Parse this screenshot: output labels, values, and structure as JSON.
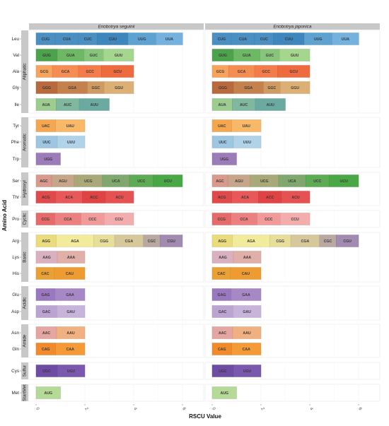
{
  "chart_data": {
    "type": "bar",
    "orientation": "horizontal-stacked",
    "xlabel": "RSCU Value",
    "ylabel": "Amino Acid",
    "xlim": [
      0,
      6.9
    ],
    "xticks": [
      0,
      2,
      4,
      6
    ],
    "grid": true,
    "panels": [
      {
        "name": "Eriobotrya seguinii",
        "amino_acids": [
          {
            "aa": "Leu",
            "codons": [
              {
                "codon": "CUG",
                "value": 0.78
              },
              {
                "codon": "CUA",
                "value": 0.96
              },
              {
                "codon": "CUC",
                "value": 0.77
              },
              {
                "codon": "CUU",
                "value": 1.26
              },
              {
                "codon": "UUG",
                "value": 1.14
              },
              {
                "codon": "UUA",
                "value": 1.1
              }
            ]
          },
          {
            "aa": "Val",
            "codons": [
              {
                "codon": "GUG",
                "value": 0.87
              },
              {
                "codon": "GUA",
                "value": 1.09
              },
              {
                "codon": "GUC",
                "value": 0.8
              },
              {
                "codon": "GUU",
                "value": 1.24
              }
            ]
          },
          {
            "aa": "Ala",
            "codons": [
              {
                "codon": "GCG",
                "value": 0.67
              },
              {
                "codon": "GCA",
                "value": 1.07
              },
              {
                "codon": "GCC",
                "value": 0.94
              },
              {
                "codon": "GCU",
                "value": 1.32
              }
            ]
          },
          {
            "aa": "Gly",
            "codons": [
              {
                "codon": "GGG",
                "value": 0.87
              },
              {
                "codon": "GGA",
                "value": 1.23
              },
              {
                "codon": "GGC",
                "value": 0.69
              },
              {
                "codon": "GGU",
                "value": 1.21
              }
            ]
          },
          {
            "aa": "Ile",
            "codons": [
              {
                "codon": "AUA",
                "value": 0.82
              },
              {
                "codon": "AUC",
                "value": 0.95
              },
              {
                "codon": "AUU",
                "value": 1.23
              }
            ]
          },
          {
            "aa": "Tyr",
            "codons": [
              {
                "codon": "UAC",
                "value": 0.8
              },
              {
                "codon": "UAU",
                "value": 1.2
              }
            ]
          },
          {
            "aa": "Phe",
            "codons": [
              {
                "codon": "UUC",
                "value": 0.87
              },
              {
                "codon": "UUU",
                "value": 1.13
              }
            ]
          },
          {
            "aa": "Trp",
            "codons": [
              {
                "codon": "UGG",
                "value": 1.0
              }
            ]
          },
          {
            "aa": "Ser",
            "codons": [
              {
                "codon": "AGC",
                "value": 0.64
              },
              {
                "codon": "AGU",
                "value": 0.92
              },
              {
                "codon": "UCG",
                "value": 1.16
              },
              {
                "codon": "UCA",
                "value": 1.11
              },
              {
                "codon": "UCC",
                "value": 0.97
              },
              {
                "codon": "UCU",
                "value": 1.2
              }
            ]
          },
          {
            "aa": "Thr",
            "codons": [
              {
                "codon": "ACG",
                "value": 0.8
              },
              {
                "codon": "ACA",
                "value": 1.1
              },
              {
                "codon": "ACC",
                "value": 0.94
              },
              {
                "codon": "ACU",
                "value": 1.16
              }
            ]
          },
          {
            "aa": "Pro",
            "codons": [
              {
                "codon": "CCG",
                "value": 0.77
              },
              {
                "codon": "CCA",
                "value": 1.07
              },
              {
                "codon": "CCC",
                "value": 0.95
              },
              {
                "codon": "CCU",
                "value": 1.21
              }
            ]
          },
          {
            "aa": "Arg",
            "codons": [
              {
                "codon": "AGG",
                "value": 0.83
              },
              {
                "codon": "AGA",
                "value": 1.53
              },
              {
                "codon": "CGG",
                "value": 0.86
              },
              {
                "codon": "CGA",
                "value": 1.18
              },
              {
                "codon": "CGC",
                "value": 0.68
              },
              {
                "codon": "CGU",
                "value": 0.92
              }
            ]
          },
          {
            "aa": "Lys",
            "codons": [
              {
                "codon": "AAG",
                "value": 0.87
              },
              {
                "codon": "AAA",
                "value": 1.13
              }
            ]
          },
          {
            "aa": "His",
            "codons": [
              {
                "codon": "CAC",
                "value": 0.75
              },
              {
                "codon": "CAU",
                "value": 1.25
              }
            ]
          },
          {
            "aa": "Glu",
            "codons": [
              {
                "codon": "GAG",
                "value": 0.78
              },
              {
                "codon": "GAA",
                "value": 1.22
              }
            ]
          },
          {
            "aa": "Asp",
            "codons": [
              {
                "codon": "GAC",
                "value": 0.85
              },
              {
                "codon": "GAU",
                "value": 1.15
              }
            ]
          },
          {
            "aa": "Asn",
            "codons": [
              {
                "codon": "AAC",
                "value": 0.84
              },
              {
                "codon": "AAU",
                "value": 1.16
              }
            ]
          },
          {
            "aa": "Gln",
            "codons": [
              {
                "codon": "CAG",
                "value": 0.8
              },
              {
                "codon": "CAA",
                "value": 1.2
              }
            ]
          },
          {
            "aa": "Cys",
            "codons": [
              {
                "codon": "UGC",
                "value": 0.87
              },
              {
                "codon": "UGU",
                "value": 1.13
              }
            ]
          },
          {
            "aa": "Met",
            "codons": [
              {
                "codon": "AUG",
                "value": 1.0
              }
            ]
          }
        ]
      },
      {
        "name": "Eriobotrya japonica",
        "amino_acids": [
          {
            "aa": "Leu",
            "codons": [
              {
                "codon": "CUG",
                "value": 0.78
              },
              {
                "codon": "CUA",
                "value": 0.96
              },
              {
                "codon": "CUC",
                "value": 0.77
              },
              {
                "codon": "CUU",
                "value": 1.26
              },
              {
                "codon": "UUG",
                "value": 1.14
              },
              {
                "codon": "UUA",
                "value": 1.1
              }
            ]
          },
          {
            "aa": "Val",
            "codons": [
              {
                "codon": "GUG",
                "value": 0.87
              },
              {
                "codon": "GUA",
                "value": 1.09
              },
              {
                "codon": "GUC",
                "value": 0.8
              },
              {
                "codon": "GUU",
                "value": 1.24
              }
            ]
          },
          {
            "aa": "Ala",
            "codons": [
              {
                "codon": "GCG",
                "value": 0.67
              },
              {
                "codon": "GCA",
                "value": 1.07
              },
              {
                "codon": "GCC",
                "value": 0.94
              },
              {
                "codon": "GCU",
                "value": 1.32
              }
            ]
          },
          {
            "aa": "Gly",
            "codons": [
              {
                "codon": "GGG",
                "value": 0.87
              },
              {
                "codon": "GGA",
                "value": 1.23
              },
              {
                "codon": "GGC",
                "value": 0.69
              },
              {
                "codon": "GGU",
                "value": 1.21
              }
            ]
          },
          {
            "aa": "Ile",
            "codons": [
              {
                "codon": "AUA",
                "value": 0.82
              },
              {
                "codon": "AUC",
                "value": 0.95
              },
              {
                "codon": "AUU",
                "value": 1.23
              }
            ]
          },
          {
            "aa": "Tyr",
            "codons": [
              {
                "codon": "UAC",
                "value": 0.8
              },
              {
                "codon": "UAU",
                "value": 1.2
              }
            ]
          },
          {
            "aa": "Phe",
            "codons": [
              {
                "codon": "UUC",
                "value": 0.87
              },
              {
                "codon": "UUU",
                "value": 1.13
              }
            ]
          },
          {
            "aa": "Trp",
            "codons": [
              {
                "codon": "UGG",
                "value": 1.0
              }
            ]
          },
          {
            "aa": "Ser",
            "codons": [
              {
                "codon": "AGC",
                "value": 0.64
              },
              {
                "codon": "AGU",
                "value": 0.92
              },
              {
                "codon": "UCG",
                "value": 1.16
              },
              {
                "codon": "UCA",
                "value": 1.11
              },
              {
                "codon": "UCC",
                "value": 0.97
              },
              {
                "codon": "UCU",
                "value": 1.2
              }
            ]
          },
          {
            "aa": "Thr",
            "codons": [
              {
                "codon": "ACG",
                "value": 0.8
              },
              {
                "codon": "ACA",
                "value": 1.1
              },
              {
                "codon": "ACC",
                "value": 0.94
              },
              {
                "codon": "ACU",
                "value": 1.16
              }
            ]
          },
          {
            "aa": "Pro",
            "codons": [
              {
                "codon": "CCG",
                "value": 0.77
              },
              {
                "codon": "CCA",
                "value": 1.07
              },
              {
                "codon": "CCC",
                "value": 0.95
              },
              {
                "codon": "CCU",
                "value": 1.21
              }
            ]
          },
          {
            "aa": "Arg",
            "codons": [
              {
                "codon": "AGG",
                "value": 0.83
              },
              {
                "codon": "AGA",
                "value": 1.53
              },
              {
                "codon": "CGG",
                "value": 0.86
              },
              {
                "codon": "CGA",
                "value": 1.18
              },
              {
                "codon": "CGC",
                "value": 0.68
              },
              {
                "codon": "CGU",
                "value": 0.92
              }
            ]
          },
          {
            "aa": "Lys",
            "codons": [
              {
                "codon": "AAG",
                "value": 0.87
              },
              {
                "codon": "AAA",
                "value": 1.13
              }
            ]
          },
          {
            "aa": "His",
            "codons": [
              {
                "codon": "CAC",
                "value": 0.75
              },
              {
                "codon": "CAU",
                "value": 1.25
              }
            ]
          },
          {
            "aa": "Glu",
            "codons": [
              {
                "codon": "GAG",
                "value": 0.78
              },
              {
                "codon": "GAA",
                "value": 1.22
              }
            ]
          },
          {
            "aa": "Asp",
            "codons": [
              {
                "codon": "GAC",
                "value": 0.85
              },
              {
                "codon": "GAU",
                "value": 1.15
              }
            ]
          },
          {
            "aa": "Asn",
            "codons": [
              {
                "codon": "AAC",
                "value": 0.84
              },
              {
                "codon": "AAU",
                "value": 1.16
              }
            ]
          },
          {
            "aa": "Gln",
            "codons": [
              {
                "codon": "CAG",
                "value": 0.8
              },
              {
                "codon": "CAA",
                "value": 1.2
              }
            ]
          },
          {
            "aa": "Cys",
            "codons": [
              {
                "codon": "UGC",
                "value": 0.87
              },
              {
                "codon": "UGU",
                "value": 1.13
              }
            ]
          },
          {
            "aa": "Met",
            "codons": [
              {
                "codon": "AUG",
                "value": 1.0
              }
            ]
          }
        ]
      }
    ],
    "groups": [
      {
        "name": "Aliphatic",
        "members": [
          "Leu",
          "Val",
          "Ala",
          "Gly",
          "Ile"
        ]
      },
      {
        "name": "Aromatic",
        "members": [
          "Tyr",
          "Phe",
          "Trp"
        ]
      },
      {
        "name": "Hydroxyl",
        "members": [
          "Ser",
          "Thr"
        ]
      },
      {
        "name": "Cyclic",
        "members": [
          "Pro"
        ]
      },
      {
        "name": "Basic",
        "members": [
          "Arg",
          "Lys",
          "His"
        ]
      },
      {
        "name": "Acidic",
        "members": [
          "Glu",
          "Asp"
        ]
      },
      {
        "name": "Amide",
        "members": [
          "Asn",
          "Gln"
        ]
      },
      {
        "name": "Sulfur",
        "members": [
          "Cys"
        ]
      },
      {
        "name": "StartMet",
        "members": [
          "Met"
        ]
      }
    ],
    "colors": {
      "CUG": "#4a8fc2",
      "CUA": "#4a8fc2",
      "CUC": "#4a8fc2",
      "CUU": "#3f86bd",
      "UUG": "#5ea2d2",
      "UUA": "#74b1de",
      "GUG": "#4ca34c",
      "GUA": "#6db863",
      "GUC": "#86c57a",
      "GUU": "#a4d68e",
      "GCG": "#f7a35c",
      "GCA": "#f58c52",
      "GCC": "#f47c4a",
      "GCU": "#ee6a3f",
      "GGG": "#b86a3e",
      "GGA": "#c4804d",
      "GGC": "#d09a63",
      "GGU": "#dcb074",
      "AUA": "#9ccc8f",
      "AUC": "#7fb89e",
      "AUU": "#6aaaa0",
      "UAC": "#f5a74f",
      "UAU": "#f8b867",
      "UUC": "#9cc6e2",
      "UUU": "#b0d3ea",
      "UGG": "#9b7bb8",
      "AGC": "#d9998c",
      "AGU": "#c6a58a",
      "UCG": "#a8a878",
      "UCA": "#80a86e",
      "UCC": "#5eab55",
      "UCU": "#49a845",
      "ACG": "#e04a4a",
      "ACA": "#e85858",
      "ACC": "#e04343",
      "ACU": "#e65252",
      "CCG": "#e76a6a",
      "CCA": "#ec8080",
      "CCC": "#f09a9a",
      "CCU": "#f3adad",
      "AGG": "#eadb7c",
      "AGA": "#f3eb9c",
      "CGG": "#e7de9a",
      "CGA": "#d6c89a",
      "CGC": "#b9a8a2",
      "CGU": "#a28ab0",
      "AAG": "#d8b0bf",
      "AAA": "#e0afa8",
      "CAC": "#e9a035",
      "CAU": "#ee9c32",
      "GAG": "#9a78bf",
      "GAA": "#a788c7",
      "GAC": "#bba4d2",
      "GAU": "#c8b4da",
      "AAC": "#e5a5a0",
      "AAU": "#f0b080",
      "CAG": "#f08a2a",
      "CAA": "#f59a38",
      "UGC": "#6e4ca4",
      "UGU": "#7a58ad",
      "AUG": "#b5d996"
    }
  }
}
